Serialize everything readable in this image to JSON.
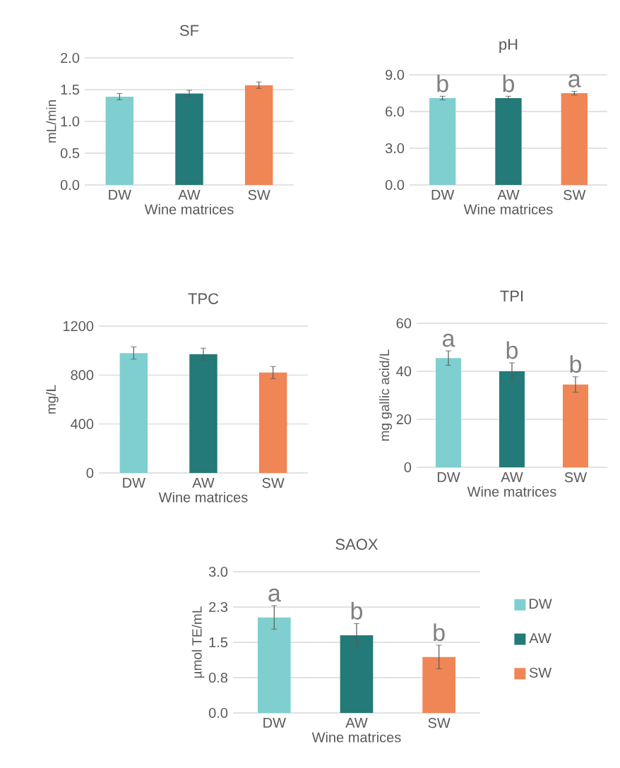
{
  "chart_data": [
    {
      "type": "bar",
      "title": "SF",
      "xlabel": "Wine matrices",
      "ylabel": "mL/min",
      "categories": [
        "DW",
        "AW",
        "SW"
      ],
      "values": [
        1.39,
        1.44,
        1.57
      ],
      "errors": [
        0.05,
        0.05,
        0.05
      ],
      "colors": [
        "#7fcfd0",
        "#237a78",
        "#f08555"
      ],
      "ylim": [
        0,
        2
      ],
      "yticks": [
        {
          "value": 0,
          "label": "0.0"
        },
        0.5,
        {
          "value": 1,
          "label": "1.0"
        },
        1.5,
        {
          "value": 2,
          "label": "2.0"
        }
      ],
      "grid": "y"
    },
    {
      "type": "bar",
      "title": "pH",
      "xlabel": "Wine matrices",
      "categories": [
        "DW",
        "AW",
        "SW"
      ],
      "values": [
        7.1,
        7.1,
        7.5
      ],
      "errors": [
        0.15,
        0.15,
        0.15
      ],
      "colors": [
        "#7fcfd0",
        "#237a78",
        "#f08555"
      ],
      "ylim": [
        0,
        9
      ],
      "yticks": [
        {
          "value": 0,
          "label": "0.0"
        },
        {
          "value": 3,
          "label": "3.0"
        },
        {
          "value": 6,
          "label": "6.0"
        },
        {
          "value": 9,
          "label": "9.0"
        }
      ],
      "grid": "y",
      "annotations": [
        "b",
        "b",
        "a"
      ]
    },
    {
      "type": "bar",
      "title": "TPC",
      "xlabel": "Wine matrices",
      "ylabel": "mg/L",
      "categories": [
        "DW",
        "AW",
        "SW"
      ],
      "values": [
        980,
        970,
        820
      ],
      "errors": [
        50,
        50,
        50
      ],
      "colors": [
        "#7fcfd0",
        "#237a78",
        "#f08555"
      ],
      "ylim": [
        0,
        1200
      ],
      "yticks": [
        0,
        400,
        800,
        1200
      ],
      "grid": "y"
    },
    {
      "type": "bar",
      "title": "TPI",
      "xlabel": "Wine matrices",
      "ylabel": "mg gallic acid/L",
      "categories": [
        "DW",
        "AW",
        "SW"
      ],
      "values": [
        45.5,
        40,
        34.5
      ],
      "errors": [
        3,
        3.5,
        3.2
      ],
      "colors": [
        "#7fcfd0",
        "#237a78",
        "#f08555"
      ],
      "ylim": [
        0,
        60
      ],
      "yticks": [
        0,
        20,
        40,
        60
      ],
      "grid": "y",
      "annotations": [
        "a",
        "b",
        "b"
      ]
    },
    {
      "type": "bar",
      "title": "SAOX",
      "xlabel": "Wine matrices",
      "ylabel": "µmol TE/mL",
      "categories": [
        "DW",
        "AW",
        "SW"
      ],
      "ylim": [
        0,
        3
      ],
      "yticks": [
        {
          "value": 0,
          "label": "0.0"
        },
        {
          "value": 0.75,
          "label": "0.8"
        },
        1.5,
        {
          "value": 2.25,
          "label": "2.3"
        },
        {
          "value": 3,
          "label": "3.0"
        }
      ],
      "grid": "y",
      "legend": "right",
      "series": [
        {
          "name": "DW",
          "color": "#7fcfd0",
          "values": [
            2.03,
            null,
            null
          ],
          "errors": [
            0.25,
            null,
            null
          ]
        },
        {
          "name": "AW",
          "color": "#237a78",
          "values": [
            null,
            1.65,
            null
          ],
          "errors": [
            null,
            0.25,
            null
          ]
        },
        {
          "name": "SW",
          "color": "#f08555",
          "values": [
            null,
            null,
            1.19
          ],
          "errors": [
            null,
            null,
            0.25
          ]
        }
      ],
      "annotations": [
        "a",
        "b",
        "b"
      ]
    }
  ]
}
